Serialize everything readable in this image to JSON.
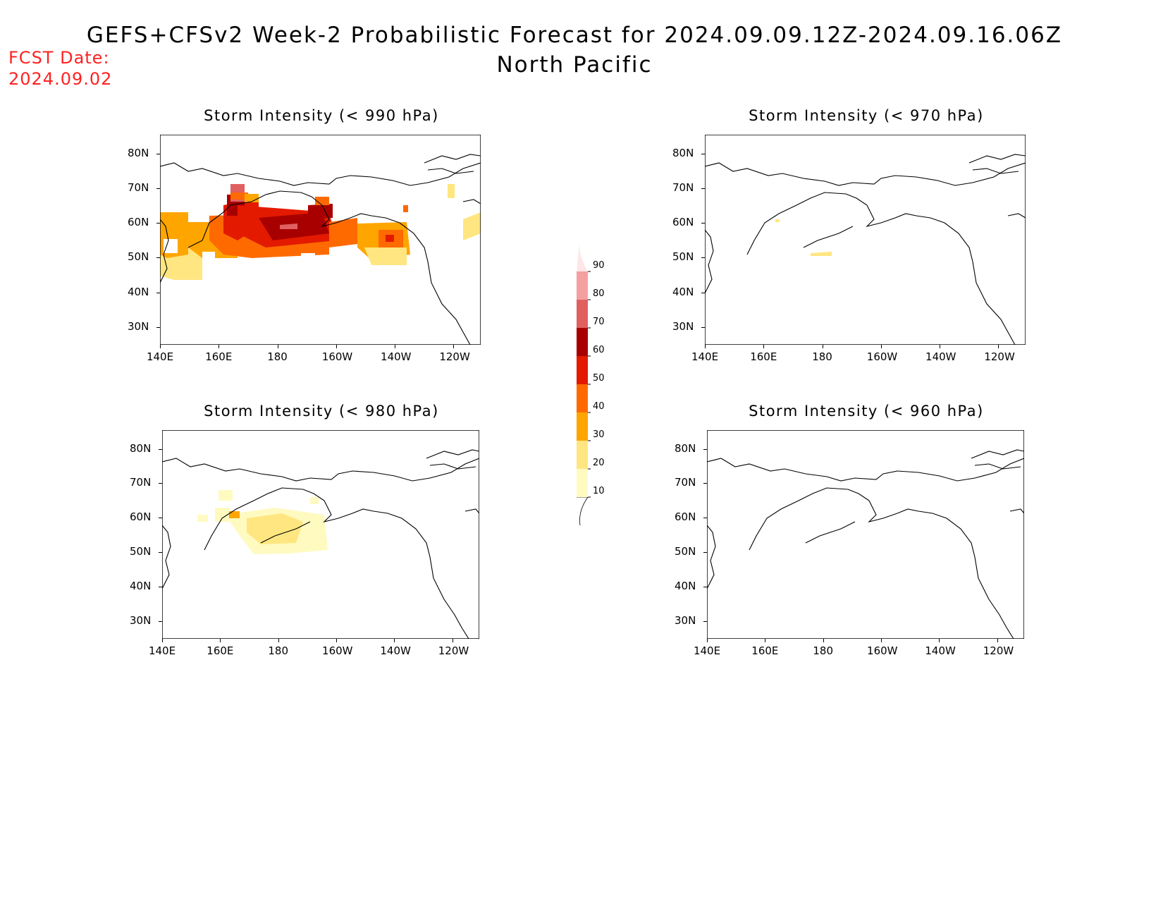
{
  "header": {
    "title": "GEFS+CFSv2 Week-2 Probabilistic Forecast for 2024.09.09.12Z-2024.09.16.06Z",
    "subtitle": "North Pacific",
    "fcst_label": "FCST Date:",
    "fcst_date": "2024.09.02",
    "fcst_color": "#ff2222"
  },
  "panels": [
    {
      "id": "p990",
      "title": "Storm Intensity (< 990 hPa)"
    },
    {
      "id": "p970",
      "title": "Storm Intensity (< 970 hPa)"
    },
    {
      "id": "p980",
      "title": "Storm Intensity (< 980 hPa)"
    },
    {
      "id": "p960",
      "title": "Storm Intensity (< 960 hPa)"
    }
  ],
  "axes": {
    "lat_labels": [
      "80N",
      "70N",
      "60N",
      "50N",
      "40N",
      "30N"
    ],
    "lon_labels": [
      "140E",
      "160E",
      "180",
      "160W",
      "140W",
      "120W"
    ]
  },
  "colorbar": {
    "levels": [
      "10",
      "20",
      "30",
      "40",
      "50",
      "60",
      "70",
      "80",
      "90"
    ],
    "colors": [
      "#fffac0",
      "#ffe680",
      "#ffa500",
      "#ff6a00",
      "#e31a00",
      "#a80000",
      "#e06060",
      "#f5a0a0",
      "#ffe6e6"
    ]
  }
}
